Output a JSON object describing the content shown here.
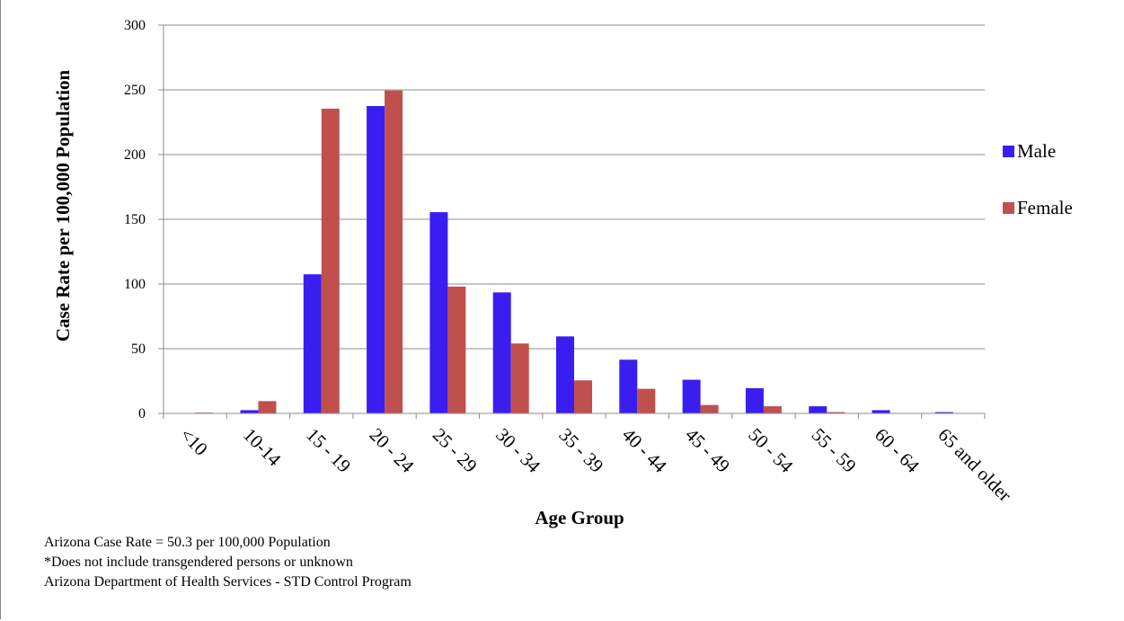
{
  "chart_data": {
    "type": "bar",
    "title": "",
    "xlabel": "Age Group",
    "ylabel": "Case Rate per 100,000 Population",
    "ylim": [
      0,
      300
    ],
    "yticks": [
      0,
      50,
      100,
      150,
      200,
      250,
      300
    ],
    "grid": true,
    "legend_position": "right",
    "categories": [
      "<10",
      "10-14",
      "15 - 19",
      "20 - 24",
      "25 - 29",
      "30 - 34",
      "35 - 39",
      "40 - 44",
      "45 - 49",
      "50 - 54",
      "55 - 59",
      "60 - 64",
      "65 and older"
    ],
    "series": [
      {
        "name": "Male",
        "color": "#3a1ef0",
        "values": [
          0.3,
          2.5,
          107.5,
          237.5,
          155.5,
          93.5,
          59.5,
          41.5,
          26,
          19.5,
          5.5,
          2.5,
          1
        ]
      },
      {
        "name": "Female",
        "color": "#c0504d",
        "values": [
          0.6,
          9.5,
          235.5,
          249.5,
          98,
          54,
          25.5,
          19,
          6.5,
          5.5,
          1,
          0.3,
          0.3
        ]
      }
    ]
  },
  "notes": [
    "Arizona Case Rate = 50.3 per 100,000 Population",
    "*Does not include transgendered persons or unknown",
    "Arizona Department of Health Services - STD Control Program"
  ]
}
